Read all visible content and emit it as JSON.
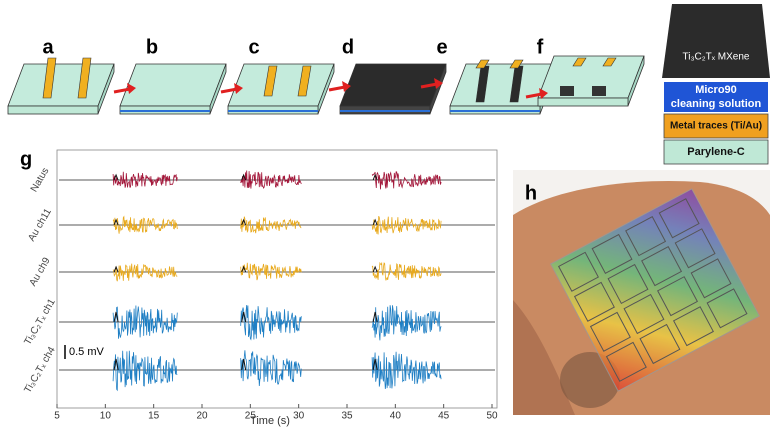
{
  "panels": {
    "a": "a",
    "b": "b",
    "c": "c",
    "d": "d",
    "e": "e",
    "f": "f",
    "g": "g",
    "h": "h"
  },
  "layers": [
    {
      "lines": [
        "Ti₃C₂Tₓ MXene"
      ]
    },
    {
      "lines": [
        "Micro90",
        "cleaning solution"
      ]
    },
    {
      "lines": [
        "Metal traces (Ti/Au)"
      ]
    },
    {
      "lines": [
        "Parylene-C"
      ]
    }
  ],
  "chart_data": {
    "type": "line",
    "x_label": "Time (s)",
    "xlim": [
      5,
      50
    ],
    "xticks": [
      5,
      10,
      15,
      20,
      25,
      30,
      35,
      40,
      45,
      50
    ],
    "scale_bar": "0.5 mV",
    "bursts": [
      [
        10.8,
        17.5
      ],
      [
        24,
        30.3
      ],
      [
        37.6,
        44.8
      ]
    ],
    "series": [
      {
        "name": "Natus",
        "color": "#a3173a"
      },
      {
        "name": "Au ch11",
        "color": "#e8a91c"
      },
      {
        "name": "Au ch9",
        "color": "#e8a91c"
      },
      {
        "name": "Ti₃C₂Tₓ ch1",
        "color": "#1f7fc4"
      },
      {
        "name": "Ti₃C₂Tₓ ch4",
        "color": "#1f7fc4"
      }
    ]
  }
}
